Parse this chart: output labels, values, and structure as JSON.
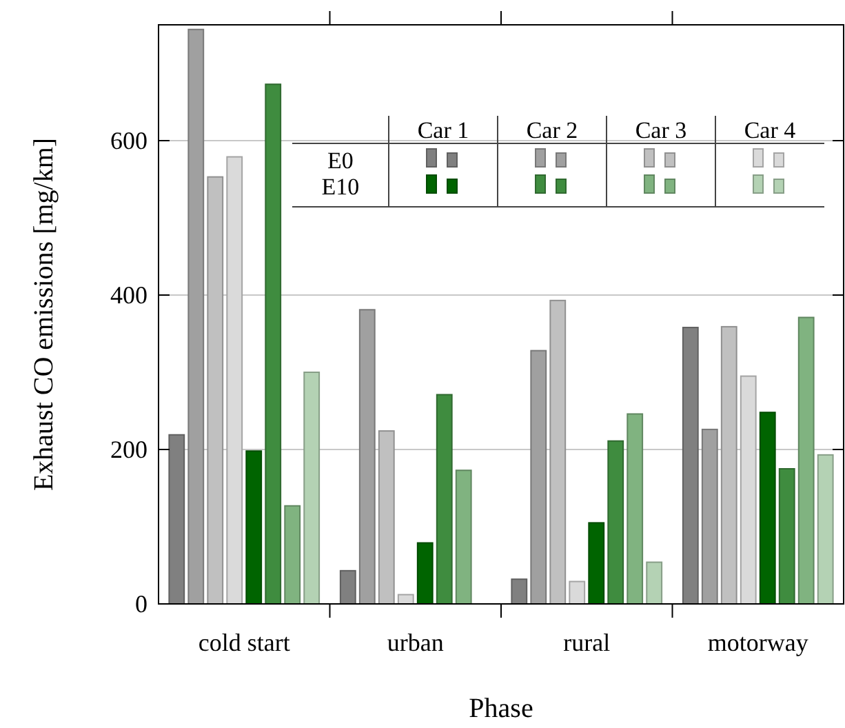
{
  "chart_data": {
    "type": "bar",
    "xlabel": "Phase",
    "ylabel": "Exhaust CO emissions [mg/km]",
    "categories": [
      "cold start",
      "urban",
      "rural",
      "motorway"
    ],
    "series": [
      {
        "color": "#808080",
        "values": [
          219,
          43,
          32,
          358
        ]
      },
      {
        "color": "#a0a0a0",
        "values": [
          744,
          381,
          328,
          226
        ]
      },
      {
        "color": "#c0c0c0",
        "values": [
          553,
          224,
          393,
          359
        ]
      },
      {
        "color": "#dadada",
        "values": [
          579,
          12,
          29,
          295
        ]
      },
      {
        "color": "#006400",
        "values": [
          198,
          79,
          105,
          248
        ]
      },
      {
        "color": "#3f8c3f",
        "values": [
          673,
          271,
          211,
          175
        ]
      },
      {
        "color": "#80b380",
        "values": [
          127,
          173,
          246,
          371
        ]
      },
      {
        "color": "#b4d2b4",
        "values": [
          300,
          null,
          54,
          193
        ]
      }
    ],
    "annotations": [
      "Car 1",
      "Car 2",
      "Car 3",
      "Car 4",
      "E0",
      "E10"
    ],
    "ylim": [
      0,
      750
    ],
    "yticks": [
      0,
      200,
      400,
      600
    ],
    "grid": "y"
  }
}
